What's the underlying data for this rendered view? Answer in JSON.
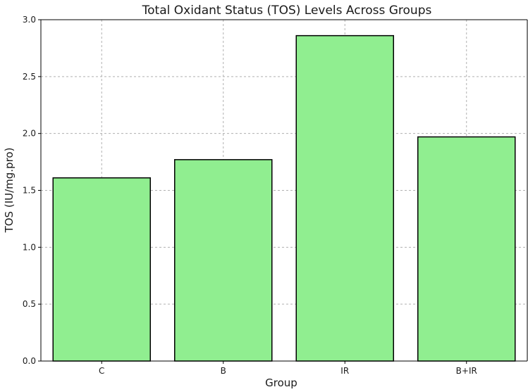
{
  "chart_data": {
    "type": "bar",
    "title": "Total Oxidant Status (TOS) Levels Across Groups",
    "xlabel": "Group",
    "ylabel": "TOS (IU/mg.pro)",
    "categories": [
      "C",
      "B",
      "IR",
      "B+IR"
    ],
    "values": [
      1.61,
      1.77,
      2.86,
      1.97
    ],
    "ylim": [
      0,
      3.0
    ],
    "yticks": [
      "0.0",
      "0.5",
      "1.0",
      "1.5",
      "2.0",
      "2.5",
      "3.0"
    ],
    "grid": true,
    "bar_color": "#90ee90",
    "edge_color": "#000000"
  }
}
